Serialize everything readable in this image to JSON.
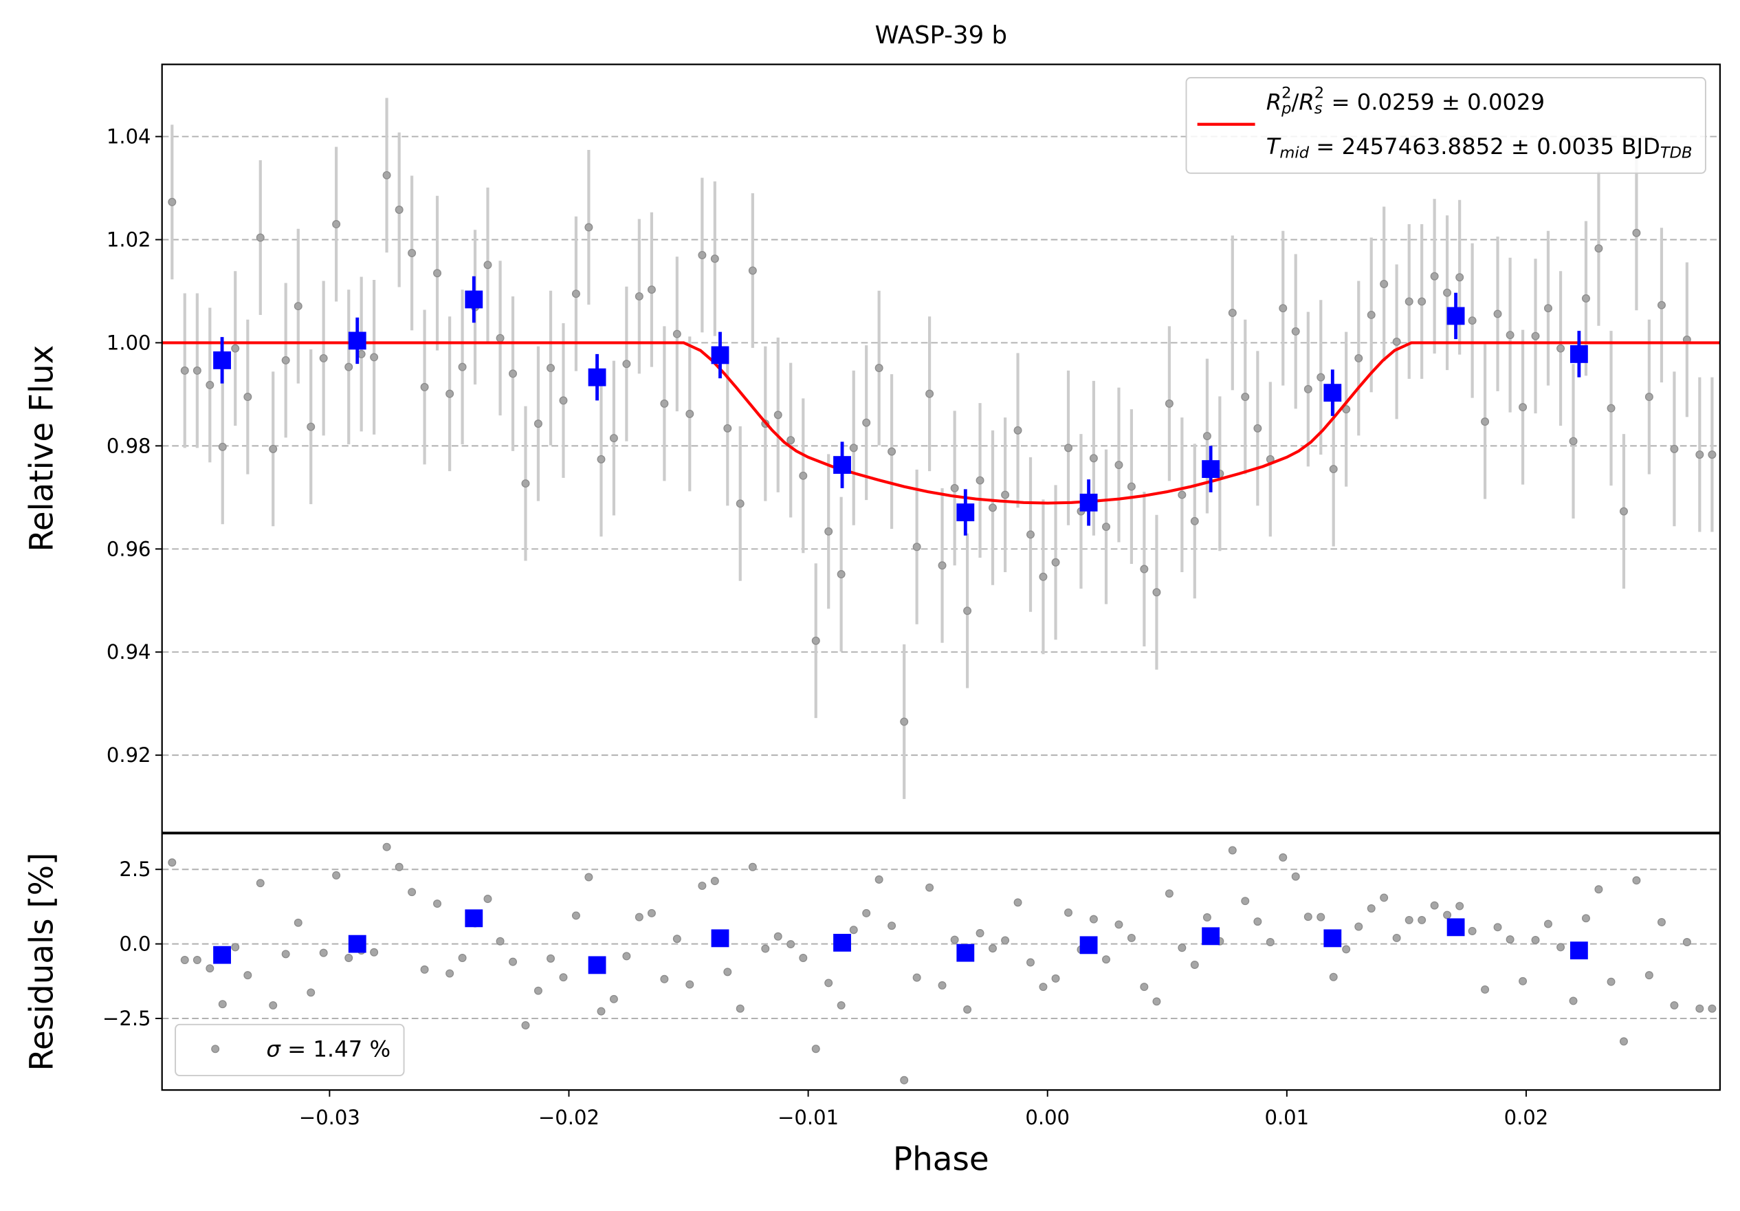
{
  "chart_data": [
    {
      "type": "errorbar",
      "title": "WASP-39 b",
      "ylabel": "Relative Flux",
      "xlim": [
        -0.037,
        0.0281
      ],
      "ylim": [
        0.905,
        1.054
      ],
      "yticks": [
        0.92,
        0.94,
        0.96,
        0.98,
        {
          "value": 1,
          "label": "1.00"
        },
        1.02,
        1.04
      ],
      "grid": true,
      "legend": "upper right",
      "series": [
        {
          "marker": "circle",
          "color": "#a6a6a6",
          "ecolor": "#cccccc",
          "yerr": 0.015,
          "x": [
            -0.03658,
            -0.03605,
            -0.03553,
            -0.035,
            -0.03447,
            -0.03394,
            -0.03342,
            -0.03289,
            -0.03236,
            -0.03183,
            -0.03131,
            -0.03078,
            -0.03025,
            -0.02972,
            -0.0292,
            -0.02867,
            -0.02814,
            -0.02761,
            -0.02709,
            -0.02656,
            -0.02603,
            -0.0255,
            -0.02498,
            -0.02445,
            -0.02392,
            -0.02339,
            -0.02287,
            -0.02234,
            -0.02181,
            -0.02128,
            -0.02076,
            -0.02023,
            -0.0197,
            -0.01917,
            -0.01865,
            -0.01812,
            -0.01759,
            -0.01706,
            -0.01654,
            -0.01601,
            -0.01548,
            -0.01495,
            -0.01443,
            -0.0139,
            -0.01337,
            -0.01284,
            -0.01232,
            -0.01179,
            -0.01126,
            -0.01073,
            -0.01021,
            -0.00968,
            -0.00915,
            -0.00862,
            -0.0081,
            -0.00757,
            -0.00704,
            -0.00651,
            -0.00599,
            -0.00546,
            -0.00493,
            -0.0044,
            -0.00388,
            -0.00335,
            -0.00282,
            -0.00229,
            -0.00177,
            -0.00124,
            -0.00071,
            -0.00018,
            0.00034,
            0.00087,
            0.0014,
            0.00193,
            0.00245,
            0.00298,
            0.00351,
            0.00404,
            0.00456,
            0.00509,
            0.00562,
            0.00615,
            0.00667,
            0.0072,
            0.00773,
            0.00826,
            0.00878,
            0.00931,
            0.00984,
            0.01037,
            0.01089,
            0.01142,
            0.01195,
            0.01248,
            0.013,
            0.01353,
            0.01406,
            0.01459,
            0.01511,
            0.01564,
            0.01617,
            0.0167,
            0.01722,
            0.01775,
            0.01828,
            0.01881,
            0.01933,
            0.01986,
            0.02039,
            0.02092,
            0.02144,
            0.02197,
            0.0225,
            0.02303,
            0.02355,
            0.02408,
            0.02461,
            0.02514,
            0.02566,
            0.02619,
            0.02672,
            0.02725,
            0.02777
          ],
          "values": [
            1.0273,
            0.9946,
            0.9946,
            0.9918,
            0.9798,
            0.9989,
            0.9895,
            1.0204,
            0.9794,
            0.9966,
            1.0071,
            0.9837,
            0.997,
            1.023,
            0.9953,
            0.9978,
            0.9972,
            1.0325,
            1.0258,
            1.0174,
            0.9914,
            1.0135,
            0.9901,
            0.9953,
            1.0069,
            1.0151,
            1.0009,
            0.994,
            0.9727,
            0.9843,
            0.9951,
            0.9888,
            1.0095,
            1.0224,
            0.9774,
            0.9815,
            0.9959,
            1.009,
            1.0103,
            0.9882,
            1.0017,
            0.9862,
            1.017,
            1.0163,
            0.9834,
            0.9688,
            1.014,
            0.9843,
            0.986,
            0.9811,
            0.9742,
            0.9422,
            0.9634,
            0.9551,
            0.9796,
            0.9845,
            0.9951,
            0.9789,
            0.9265,
            0.9604,
            0.9901,
            0.9568,
            0.9718,
            0.948,
            0.9733,
            0.968,
            0.9705,
            0.983,
            0.9628,
            0.9546,
            0.9574,
            0.9796,
            0.9673,
            0.9776,
            0.9643,
            0.9763,
            0.9721,
            0.9561,
            0.9516,
            0.9882,
            0.9705,
            0.9654,
            0.9819,
            0.9746,
            1.0058,
            0.9895,
            0.9834,
            0.9774,
            1.0067,
            1.0022,
            0.991,
            0.9933,
            0.9755,
            0.9871,
            0.997,
            1.0054,
            1.0114,
            1.0002,
            1.008,
            1.008,
            1.0129,
            1.0097,
            1.0127,
            1.0043,
            0.9847,
            1.0056,
            1.0015,
            0.9875,
            1.0013,
            1.0067,
            0.9989,
            0.9809,
            1.0086,
            1.0183,
            0.9873,
            0.9673,
            1.0213,
            0.9895,
            1.0073,
            0.9794,
            1.0006,
            0.9783,
            0.9783
          ]
        },
        {
          "line": true,
          "color": "#ff0000",
          "name_lines": [
            [
              {
                "text": "R",
                "style": "italic"
              },
              {
                "text": "p",
                "style": "sub italic"
              },
              {
                "text": "2",
                "style": "sup stacked"
              },
              {
                "text": "/",
                "style": "plain"
              },
              {
                "text": "R",
                "style": "italic"
              },
              {
                "text": "s",
                "style": "sub italic"
              },
              {
                "text": "2",
                "style": "sup stacked"
              },
              {
                "text": " = 0.0259 ± 0.0029",
                "style": "plain"
              }
            ],
            [
              {
                "text": "T",
                "style": "italic"
              },
              {
                "text": "mid",
                "style": "sub italic"
              },
              {
                "text": " = 2457463.8852 ± 0.0035 BJD",
                "style": "plain"
              },
              {
                "text": "TDB",
                "style": "sub italic"
              }
            ]
          ],
          "x": [
            -0.037,
            -0.0152,
            -0.0145,
            -0.014,
            -0.0135,
            -0.013,
            -0.0125,
            -0.012,
            -0.0115,
            -0.011,
            -0.0105,
            -0.01,
            -0.009,
            -0.008,
            -0.007,
            -0.006,
            -0.005,
            -0.004,
            -0.003,
            -0.002,
            -0.001,
            0,
            0.001,
            0.002,
            0.003,
            0.004,
            0.005,
            0.006,
            0.007,
            0.008,
            0.009,
            0.01,
            0.0105,
            0.011,
            0.0115,
            0.012,
            0.0125,
            0.013,
            0.0135,
            0.014,
            0.0145,
            0.0152,
            0.0281
          ],
          "values": [
            1,
            1,
            0.9985,
            0.9965,
            0.994,
            0.9913,
            0.9885,
            0.9857,
            0.983,
            0.9807,
            0.979,
            0.9778,
            0.976,
            0.9746,
            0.9733,
            0.9721,
            0.9711,
            0.9703,
            0.9697,
            0.9693,
            0.969,
            0.9689,
            0.969,
            0.9693,
            0.9697,
            0.9703,
            0.9711,
            0.9721,
            0.9733,
            0.9746,
            0.976,
            0.9778,
            0.979,
            0.9807,
            0.983,
            0.9857,
            0.9885,
            0.9913,
            0.994,
            0.9965,
            0.9985,
            1,
            1
          ]
        },
        {
          "marker": "square",
          "color": "#0000ff",
          "ecolor": "#0000ff",
          "yerr": 0.0045,
          "x": [
            -0.03449,
            -0.02884,
            -0.02397,
            -0.01882,
            -0.01368,
            -0.00858,
            -0.00343,
            0.00172,
            0.00682,
            0.01191,
            0.01706,
            0.02221
          ],
          "values": [
            0.9966,
            1.0004,
            1.0084,
            0.9933,
            0.9976,
            0.9763,
            0.9671,
            0.969,
            0.9755,
            0.9903,
            1.0052,
            0.9978
          ]
        }
      ]
    },
    {
      "type": "errorbar",
      "ylabel": "Residuals [%]",
      "xlabel": "Phase",
      "xlim": [
        -0.037,
        0.0281
      ],
      "xticks": [
        {
          "value": -0.03,
          "label": "−0.03"
        },
        {
          "value": -0.02,
          "label": "−0.02"
        },
        {
          "value": -0.01,
          "label": "−0.01"
        },
        {
          "value": 0,
          "label": "0.00"
        },
        0.01,
        0.02
      ],
      "ylim": [
        -4.9,
        3.7
      ],
      "yticks": [
        {
          "value": -2.5,
          "label": "−2.5"
        },
        {
          "value": 0,
          "label": "0.0"
        },
        2.5
      ],
      "grid": true,
      "legend": "lower left",
      "series": [
        {
          "marker": "circle",
          "color": "#a6a6a6",
          "name_lines": [
            [
              {
                "text": "σ",
                "style": "italic"
              },
              {
                "text": " = 1.47 %",
                "style": "plain"
              }
            ]
          ],
          "x": [
            -0.03658,
            -0.03605,
            -0.03553,
            -0.035,
            -0.03447,
            -0.03394,
            -0.03342,
            -0.03289,
            -0.03236,
            -0.03183,
            -0.03131,
            -0.03078,
            -0.03025,
            -0.02972,
            -0.0292,
            -0.02867,
            -0.02814,
            -0.02761,
            -0.02709,
            -0.02656,
            -0.02603,
            -0.0255,
            -0.02498,
            -0.02445,
            -0.02392,
            -0.02339,
            -0.02287,
            -0.02234,
            -0.02181,
            -0.02128,
            -0.02076,
            -0.02023,
            -0.0197,
            -0.01917,
            -0.01865,
            -0.01812,
            -0.01759,
            -0.01706,
            -0.01654,
            -0.01601,
            -0.01548,
            -0.01495,
            -0.01443,
            -0.0139,
            -0.01337,
            -0.01284,
            -0.01232,
            -0.01179,
            -0.01126,
            -0.01073,
            -0.01021,
            -0.00968,
            -0.00915,
            -0.00862,
            -0.0081,
            -0.00757,
            -0.00704,
            -0.00651,
            -0.00599,
            -0.00546,
            -0.00493,
            -0.0044,
            -0.00388,
            -0.00335,
            -0.00282,
            -0.00229,
            -0.00177,
            -0.00124,
            -0.00071,
            -0.00018,
            0.00034,
            0.00087,
            0.0014,
            0.00193,
            0.00245,
            0.00298,
            0.00351,
            0.00404,
            0.00456,
            0.00509,
            0.00562,
            0.00615,
            0.00667,
            0.0072,
            0.00773,
            0.00826,
            0.00878,
            0.00931,
            0.00984,
            0.01037,
            0.01089,
            0.01142,
            0.01195,
            0.01248,
            0.013,
            0.01353,
            0.01406,
            0.01459,
            0.01511,
            0.01564,
            0.01617,
            0.0167,
            0.01722,
            0.01775,
            0.01828,
            0.01881,
            0.01933,
            0.01986,
            0.02039,
            0.02092,
            0.02144,
            0.02197,
            0.0225,
            0.02303,
            0.02355,
            0.02408,
            0.02461,
            0.02514,
            0.02566,
            0.02619,
            0.02672,
            0.02725,
            0.02777
          ],
          "values": [
            2.73,
            -0.54,
            -0.54,
            -0.82,
            -2.02,
            -0.11,
            -1.05,
            2.04,
            -2.06,
            -0.34,
            0.71,
            -1.63,
            -0.3,
            2.3,
            -0.47,
            -0.22,
            -0.28,
            3.25,
            2.58,
            1.74,
            -0.86,
            1.35,
            -0.99,
            -0.47,
            0.69,
            1.51,
            0.09,
            -0.6,
            -2.73,
            -1.57,
            -0.49,
            -1.12,
            0.95,
            2.24,
            -2.26,
            -1.85,
            -0.41,
            0.9,
            1.03,
            -1.18,
            0.17,
            -1.36,
            1.95,
            2.11,
            -0.94,
            -2.17,
            2.58,
            -0.16,
            0.25,
            -0.01,
            -0.47,
            -3.52,
            -1.31,
            -2.06,
            0.47,
            1.03,
            2.16,
            0.61,
            -4.57,
            -1.13,
            1.89,
            -1.39,
            0.14,
            -2.2,
            0.36,
            -0.15,
            0.12,
            1.39,
            -0.62,
            -1.44,
            -1.16,
            1.05,
            -0.19,
            0.83,
            -0.52,
            0.65,
            0.2,
            -1.44,
            -1.93,
            1.69,
            -0.13,
            -0.7,
            0.89,
            0.09,
            3.14,
            1.44,
            0.75,
            0.06,
            2.9,
            2.26,
            0.91,
            0.9,
            -1.11,
            -0.18,
            0.58,
            1.19,
            1.55,
            0.2,
            0.8,
            0.8,
            1.29,
            0.97,
            1.27,
            0.43,
            -1.53,
            0.56,
            0.15,
            -1.25,
            0.13,
            0.67,
            -0.11,
            -1.91,
            0.86,
            1.83,
            -1.27,
            -3.27,
            2.13,
            -1.05,
            0.73,
            -2.06,
            0.06,
            -2.17,
            -2.17
          ]
        },
        {
          "marker": "square",
          "color": "#0000ff",
          "x": [
            -0.03449,
            -0.02884,
            -0.02397,
            -0.01882,
            -0.01368,
            -0.00858,
            -0.00343,
            0.00172,
            0.00682,
            0.01191,
            0.01706,
            0.02221
          ],
          "values": [
            -0.37,
            0,
            0.86,
            -0.71,
            0.19,
            0.04,
            -0.3,
            -0.04,
            0.26,
            0.19,
            0.56,
            -0.22
          ]
        }
      ]
    }
  ]
}
